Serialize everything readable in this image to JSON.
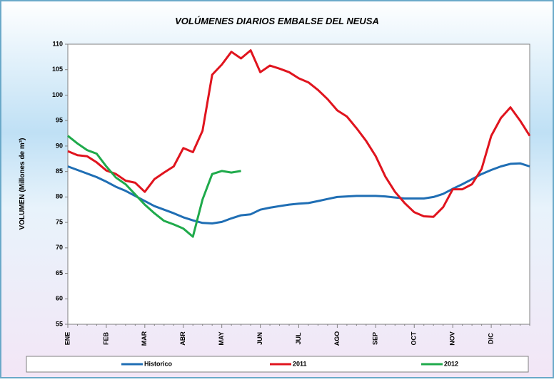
{
  "chart_data": {
    "type": "line",
    "title": "VOLÚMENES DIARIOS EMBALSE DEL NEUSA",
    "y_label": "VOLUMEN (Millones de m³)",
    "categories": [
      "ENE",
      null,
      null,
      null,
      "FEB",
      null,
      null,
      null,
      "MAR",
      null,
      null,
      null,
      "ABR",
      null,
      null,
      null,
      "MAY",
      null,
      null,
      null,
      "JUN",
      null,
      null,
      null,
      "JUL",
      null,
      null,
      null,
      "AGO",
      null,
      null,
      null,
      "SEP",
      null,
      null,
      null,
      "OCT",
      null,
      null,
      null,
      "NOV",
      null,
      null,
      null,
      "DIC",
      null,
      null,
      null,
      null
    ],
    "series": [
      {
        "name": "Historico",
        "color": "#1f6eb4",
        "values": [
          86,
          85.3,
          84.6,
          83.9,
          83,
          82,
          81.2,
          80.2,
          79.2,
          78.2,
          77.5,
          76.8,
          76,
          75.4,
          74.9,
          74.8,
          75.1,
          75.8,
          76.4,
          76.6,
          77.5,
          77.9,
          78.2,
          78.5,
          78.7,
          78.8,
          79.2,
          79.6,
          80,
          80.1,
          80.2,
          80.2,
          80.2,
          80.1,
          79.9,
          79.7,
          79.7,
          79.7,
          80,
          80.6,
          81.6,
          82.5,
          83.5,
          84.5,
          85.3,
          86,
          86.5,
          86.6,
          86
        ]
      },
      {
        "name": "2011",
        "color": "#e0141e",
        "values": [
          89,
          88.2,
          88,
          86.8,
          85.2,
          84.5,
          83.2,
          82.8,
          81,
          83.5,
          84.8,
          86,
          89.6,
          88.8,
          93,
          104,
          106,
          108.5,
          107.2,
          108.8,
          104.5,
          105.8,
          105.2,
          104.5,
          103.3,
          102.5,
          101,
          99.2,
          97,
          95.8,
          93.5,
          91,
          88,
          84,
          81,
          78.8,
          77,
          76.2,
          76.1,
          78,
          81.5,
          81.5,
          82.5,
          85.5,
          92,
          95.5,
          97.6,
          95,
          92
        ]
      },
      {
        "name": "2012",
        "color": "#1faa4b",
        "values": [
          92,
          90.5,
          89.2,
          88.5,
          86,
          83.8,
          82.5,
          80.5,
          78.5,
          76.8,
          75.3,
          74.6,
          73.8,
          72.2,
          79.5,
          84.5,
          85.1,
          84.8,
          85.1,
          null,
          null,
          null,
          null,
          null,
          null,
          null,
          null,
          null,
          null,
          null,
          null,
          null,
          null,
          null,
          null,
          null,
          null,
          null,
          null,
          null,
          null,
          null,
          null,
          null,
          null,
          null,
          null,
          null,
          null
        ]
      }
    ],
    "ylim": [
      55,
      110
    ],
    "yticks": [
      55,
      60,
      65,
      70,
      75,
      80,
      85,
      90,
      95,
      100,
      105,
      110
    ],
    "grid": false
  }
}
